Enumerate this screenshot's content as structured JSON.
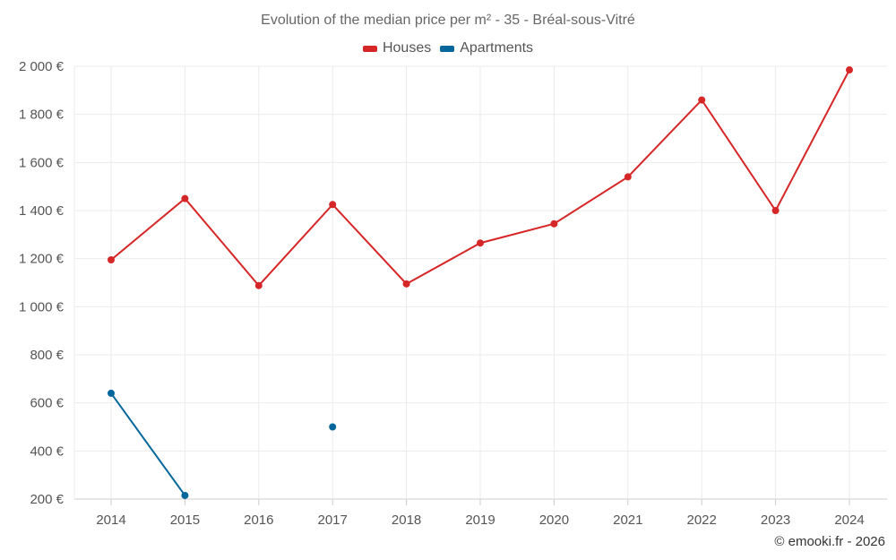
{
  "chart_data": {
    "type": "line",
    "title": "Evolution of the median price per m² - 35 - Bréal-sous-Vitré",
    "categories": [
      "2014",
      "2015",
      "2016",
      "2017",
      "2018",
      "2019",
      "2020",
      "2021",
      "2022",
      "2023",
      "2024"
    ],
    "series": [
      {
        "name": "Houses",
        "color": "#d62728",
        "values": [
          1195,
          1450,
          1088,
          1425,
          1095,
          1265,
          1345,
          1540,
          1860,
          1400,
          1985
        ]
      },
      {
        "name": "Apartments",
        "color": "#05669b",
        "values": [
          640,
          215,
          null,
          500,
          null,
          null,
          null,
          null,
          null,
          null,
          null
        ]
      }
    ],
    "y_ticks": [
      "200 €",
      "400 €",
      "600 €",
      "800 €",
      "1 000 €",
      "1 200 €",
      "1 400 €",
      "1 600 €",
      "1 800 €",
      "2 000 €"
    ],
    "ylim": [
      200,
      2000
    ],
    "xlabel": "",
    "ylabel": "",
    "grid": true,
    "legend_position": "top-center"
  },
  "credit": "© emooki.fr - 2026"
}
